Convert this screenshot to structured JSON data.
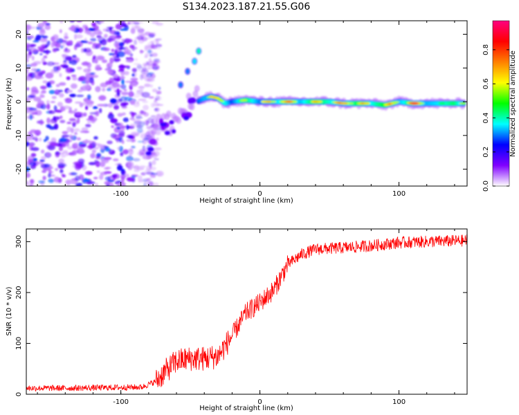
{
  "figure_title": "S134.2023.187.21.55.G06",
  "chart_data": [
    {
      "type": "heatmap",
      "panel": "spectrogram",
      "xlabel": "Height of straight line (km)",
      "ylabel": "Frequency (Hz)",
      "xlim": [
        -168,
        149
      ],
      "ylim": [
        -25,
        24
      ],
      "x_ticks": [
        -100,
        0,
        100
      ],
      "y_ticks": [
        -20,
        -10,
        0,
        10,
        20
      ],
      "x_tick_labels": [
        "-100",
        "0",
        "100"
      ],
      "y_tick_labels": [
        "-20",
        "-10",
        "0",
        "10",
        "20"
      ],
      "colorbar": {
        "label": "Normalized spectral amplitude",
        "range": [
          0,
          0.97
        ],
        "ticks": [
          0,
          0.2,
          0.4,
          0.6,
          0.8
        ],
        "tick_labels": [
          "0.0",
          "0.2",
          "0.4",
          "0.6",
          "0.8"
        ],
        "colormap": [
          "#ffffff",
          "#8000ff",
          "#0000ff",
          "#00ffff",
          "#00ff00",
          "#ffff00",
          "#ff8000",
          "#ff0000",
          "#ff0080"
        ]
      },
      "noise_region_x": [
        -168,
        -80
      ],
      "ridge": [
        {
          "x": -80,
          "y": -15,
          "a": 0.35
        },
        {
          "x": -75,
          "y": -5,
          "a": 0.3
        },
        {
          "x": -70,
          "y": -8,
          "a": 0.35
        },
        {
          "x": -65,
          "y": -6,
          "a": 0.3
        },
        {
          "x": -60,
          "y": -5,
          "a": 0.3
        },
        {
          "x": -55,
          "y": -3,
          "a": 0.35
        },
        {
          "x": -50,
          "y": -1,
          "a": 0.4
        },
        {
          "x": -45,
          "y": 0,
          "a": 0.5
        },
        {
          "x": -40,
          "y": 1,
          "a": 0.6
        },
        {
          "x": -35,
          "y": 1.5,
          "a": 0.6
        },
        {
          "x": -30,
          "y": 1,
          "a": 0.55
        },
        {
          "x": -25,
          "y": -0.5,
          "a": 0.7
        },
        {
          "x": -20,
          "y": 0,
          "a": 0.5
        },
        {
          "x": -10,
          "y": 0.5,
          "a": 0.8
        },
        {
          "x": 0,
          "y": 0,
          "a": 0.55
        },
        {
          "x": 10,
          "y": 0,
          "a": 0.6
        },
        {
          "x": 20,
          "y": 0,
          "a": 0.75
        },
        {
          "x": 30,
          "y": 0,
          "a": 0.6
        },
        {
          "x": 40,
          "y": 0,
          "a": 0.85
        },
        {
          "x": 50,
          "y": 0,
          "a": 0.7
        },
        {
          "x": 60,
          "y": -0.5,
          "a": 0.6
        },
        {
          "x": 70,
          "y": -0.5,
          "a": 0.8
        },
        {
          "x": 80,
          "y": -0.5,
          "a": 0.65
        },
        {
          "x": 90,
          "y": -1,
          "a": 0.85
        },
        {
          "x": 100,
          "y": 0,
          "a": 0.6
        },
        {
          "x": 110,
          "y": -0.5,
          "a": 0.75
        },
        {
          "x": 120,
          "y": -0.5,
          "a": 0.6
        },
        {
          "x": 130,
          "y": -0.5,
          "a": 0.65
        },
        {
          "x": 140,
          "y": -0.5,
          "a": 0.8
        },
        {
          "x": 147,
          "y": -0.5,
          "a": 0.55
        }
      ],
      "spur": [
        {
          "x": -57,
          "y": 5,
          "a": 0.3
        },
        {
          "x": -52,
          "y": 9,
          "a": 0.3
        },
        {
          "x": -47,
          "y": 12,
          "a": 0.35
        },
        {
          "x": -44,
          "y": 15,
          "a": 0.4
        }
      ]
    },
    {
      "type": "line",
      "panel": "snr",
      "xlabel": "Height of straight line (km)",
      "ylabel": "SNR (10 * v/v)",
      "xlim": [
        -168,
        149
      ],
      "ylim": [
        0,
        325
      ],
      "x_ticks": [
        -100,
        0,
        100
      ],
      "y_ticks": [
        0,
        100,
        200,
        300
      ],
      "x_tick_labels": [
        "-100",
        "0",
        "100"
      ],
      "y_tick_labels": [
        "0",
        "100",
        "200",
        "300"
      ],
      "color": "#ff0000",
      "x": [
        -168,
        -140,
        -110,
        -85,
        -75,
        -68,
        -60,
        -50,
        -40,
        -30,
        -20,
        -10,
        0,
        10,
        20,
        30,
        40,
        60,
        80,
        100,
        120,
        149
      ],
      "y": [
        12,
        12,
        13,
        14,
        25,
        45,
        65,
        70,
        70,
        75,
        115,
        160,
        180,
        205,
        255,
        275,
        285,
        288,
        292,
        298,
        300,
        302
      ],
      "noise": [
        -168,
        -75,
        6,
        -75,
        -20,
        25,
        -20,
        20,
        20,
        20,
        149,
        12
      ]
    }
  ]
}
